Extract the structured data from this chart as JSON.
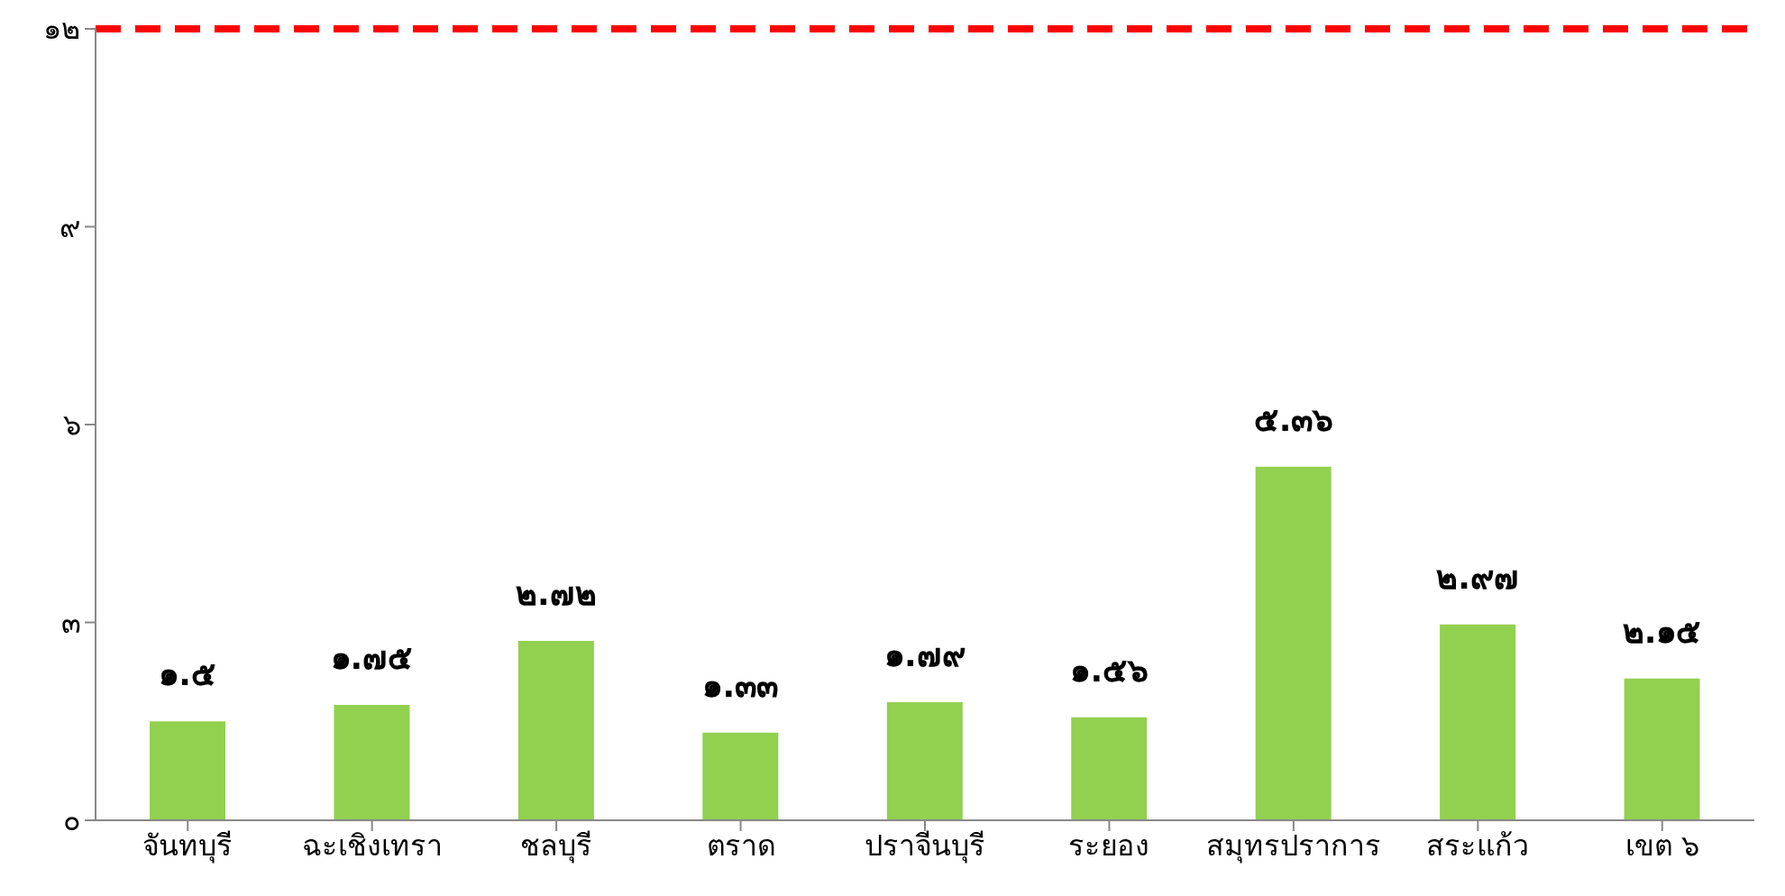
{
  "chart_data": {
    "type": "bar",
    "categories": [
      "จันทบุรี",
      "ฉะเชิงเทรา",
      "ชลบุรี",
      "ตราด",
      "ปราจีนบุรี",
      "ระยอง",
      "สมุทรปราการ",
      "สระแก้ว",
      "เขต ๖"
    ],
    "values": [
      1.5,
      1.75,
      2.72,
      1.33,
      1.79,
      1.56,
      5.36,
      2.97,
      2.15
    ],
    "value_labels": [
      "๑.๕",
      "๑.๗๕",
      "๒.๗๒",
      "๑.๓๓",
      "๑.๗๙",
      "๑.๕๖",
      "๕.๓๖",
      "๒.๙๗",
      "๒.๑๕"
    ],
    "color": "#92d050",
    "ylim": [
      0,
      12
    ],
    "yticks": [
      {
        "value": 0,
        "label": "๐"
      },
      {
        "value": 3,
        "label": "๓"
      },
      {
        "value": 6,
        "label": "๖"
      },
      {
        "value": 9,
        "label": "๙"
      },
      {
        "value": 12,
        "label": "๑๒"
      }
    ],
    "ref_lines": [
      {
        "axis": "y",
        "value": 12,
        "color": "#ff0000",
        "line_style": "dashed"
      }
    ],
    "grid": false,
    "legend": false
  }
}
